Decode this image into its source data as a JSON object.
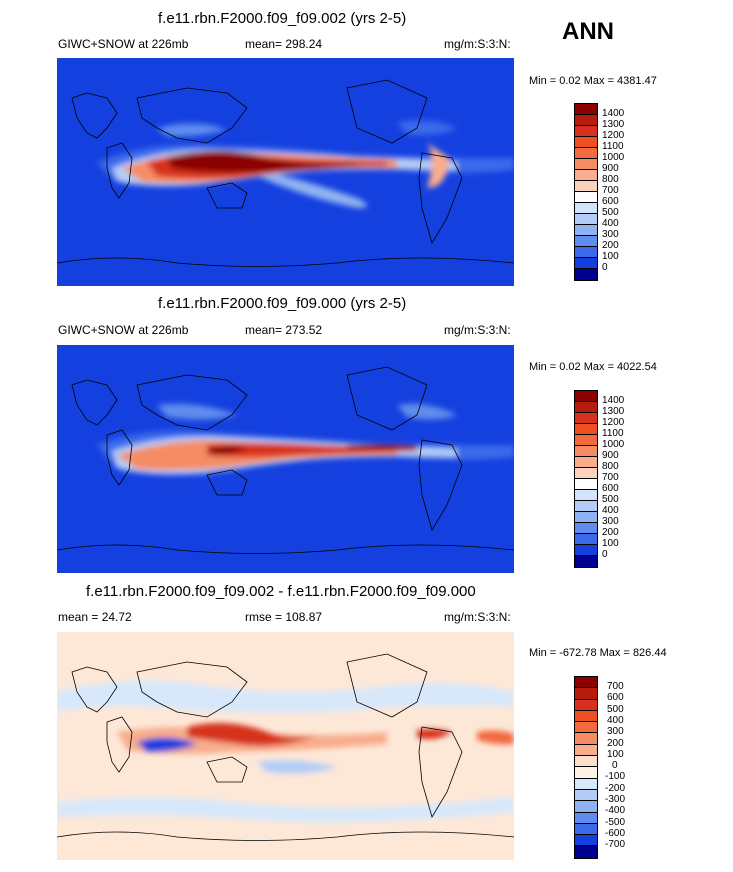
{
  "season": "ANN",
  "panels": [
    {
      "id": "test",
      "title": "f.e11.rbn.F2000.f09_f09.002 (yrs 2-5)",
      "left_label": "GIWC+SNOW at 226mb",
      "mid_label": "mean= 298.24",
      "units": "mg/m:S:3:N:",
      "minmax": "Min = 0.02 Max = 4381.47",
      "colorbar": {
        "labels": [
          "1400",
          "1300",
          "1200",
          "1100",
          "1000",
          "900",
          "800",
          "700",
          "600",
          "500",
          "400",
          "300",
          "200",
          "100",
          "0"
        ],
        "colors": [
          "#8b0000",
          "#b51c0c",
          "#d7301f",
          "#ef4f22",
          "#f26b3f",
          "#f58c63",
          "#f8ad8c",
          "#fbd2bd",
          "#ffffff",
          "#d2e3fb",
          "#b3cdf6",
          "#8fb3f1",
          "#5f8ded",
          "#3b6aea",
          "#1540e0",
          "#00008f"
        ]
      }
    },
    {
      "id": "control",
      "title": "f.e11.rbn.F2000.f09_f09.000 (yrs 2-5)",
      "left_label": "GIWC+SNOW at 226mb",
      "mid_label": "mean= 273.52",
      "units": "mg/m:S:3:N:",
      "minmax": "Min = 0.02 Max = 4022.54",
      "colorbar": {
        "labels": [
          "1400",
          "1300",
          "1200",
          "1100",
          "1000",
          "900",
          "800",
          "700",
          "600",
          "500",
          "400",
          "300",
          "200",
          "100",
          "0"
        ],
        "colors": [
          "#8b0000",
          "#b51c0c",
          "#d7301f",
          "#ef4f22",
          "#f26b3f",
          "#f58c63",
          "#f8ad8c",
          "#fbd2bd",
          "#ffffff",
          "#d2e3fb",
          "#b3cdf6",
          "#8fb3f1",
          "#5f8ded",
          "#3b6aea",
          "#1540e0",
          "#00008f"
        ]
      }
    },
    {
      "id": "diff",
      "title": "f.e11.rbn.F2000.f09_f09.002 - f.e11.rbn.F2000.f09_f09.000",
      "left_label": "mean = 24.72",
      "mid_label": "rmse = 108.87",
      "units": "mg/m:S:3:N:",
      "minmax": "Min = -672.78 Max = 826.44",
      "colorbar": {
        "labels": [
          "700",
          "600",
          "500",
          "400",
          "300",
          "200",
          "100",
          "0",
          "-100",
          "-200",
          "-300",
          "-400",
          "-500",
          "-600",
          "-700"
        ],
        "colors": [
          "#8b0000",
          "#b51c0c",
          "#d7301f",
          "#ef4f22",
          "#f26b3f",
          "#f58c63",
          "#f8ad8c",
          "#fde0cc",
          "#fff3e6",
          "#d7e8fb",
          "#b3cdf6",
          "#8fb3f1",
          "#5f8ded",
          "#3b6aea",
          "#1540e0",
          "#00008f"
        ]
      }
    }
  ]
}
